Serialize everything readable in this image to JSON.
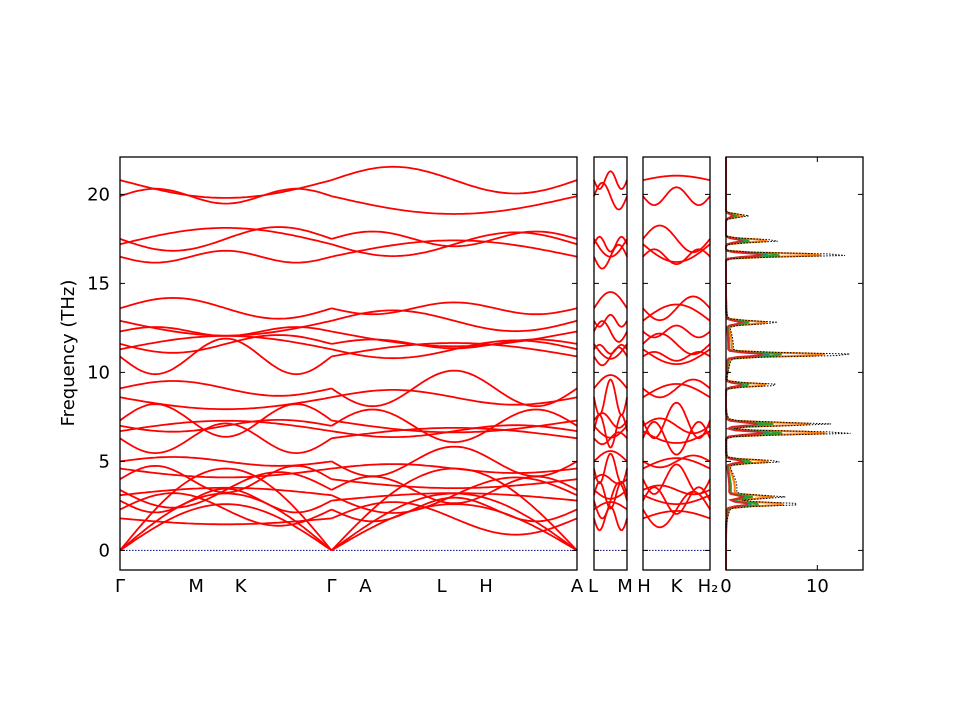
{
  "colors": {
    "band": "#ff0000",
    "zero_line": "#00008b",
    "dos_total": "#000000",
    "dos_partial": [
      "#1f77b4",
      "#ff7f0e",
      "#2ca02c",
      "#d62728"
    ]
  },
  "chart_data": {
    "type": "line",
    "ylabel": "Frequency (THz)",
    "ylim": [
      -1.1,
      22.1
    ],
    "yticks": [
      0,
      5,
      10,
      15,
      20
    ],
    "grid": false,
    "segments": [
      {
        "name": "path-1",
        "xlim": [
          0,
          1
        ],
        "ticks": [
          {
            "x": 0,
            "label": "Γ"
          },
          {
            "x": 0.36,
            "label": "M"
          },
          {
            "x": 0.57,
            "label": "K"
          },
          {
            "x": 1,
            "label": "Γ"
          },
          {
            "x": 1.16,
            "label": "A"
          },
          {
            "x": 1.52,
            "label": "L"
          },
          {
            "x": 1.73,
            "label": "H"
          },
          {
            "x": 2.16,
            "label": "A"
          }
        ],
        "plot_xlim": [
          0,
          2.16
        ]
      },
      {
        "name": "path-2",
        "ticks_labels": [
          "L",
          "M"
        ]
      },
      {
        "name": "path-3",
        "ticks_labels": [
          "H",
          "K",
          "H₂"
        ]
      }
    ],
    "band_levels_gamma": [
      0,
      0,
      0,
      1.8,
      2.3,
      2.8,
      3.1,
      3.4,
      4.0,
      4.6,
      5.0,
      6.3,
      6.7,
      7.0,
      7.3,
      8.6,
      9.1,
      10.9,
      11.3,
      11.6,
      12.3,
      12.9,
      13.6,
      16.5,
      17.2,
      17.5,
      19.9,
      20.8
    ],
    "dos": {
      "xlabel": "",
      "xticks": [
        0,
        10
      ],
      "xlim": [
        0,
        15
      ],
      "peaks": [
        {
          "frequency": 16.6,
          "total": 14.0
        },
        {
          "frequency": 12.8,
          "total": 5.5
        },
        {
          "frequency": 11.0,
          "total": 14.0
        },
        {
          "frequency": 9.3,
          "total": 6.0
        },
        {
          "frequency": 6.6,
          "total": 14.0
        },
        {
          "frequency": 7.1,
          "total": 11.0
        },
        {
          "frequency": 5.0,
          "total": 6.0
        },
        {
          "frequency": 3.0,
          "total": 5.5
        },
        {
          "frequency": 2.6,
          "total": 8.0
        },
        {
          "frequency": 17.4,
          "total": 6.0
        },
        {
          "frequency": 18.8,
          "total": 2.5
        }
      ]
    }
  }
}
